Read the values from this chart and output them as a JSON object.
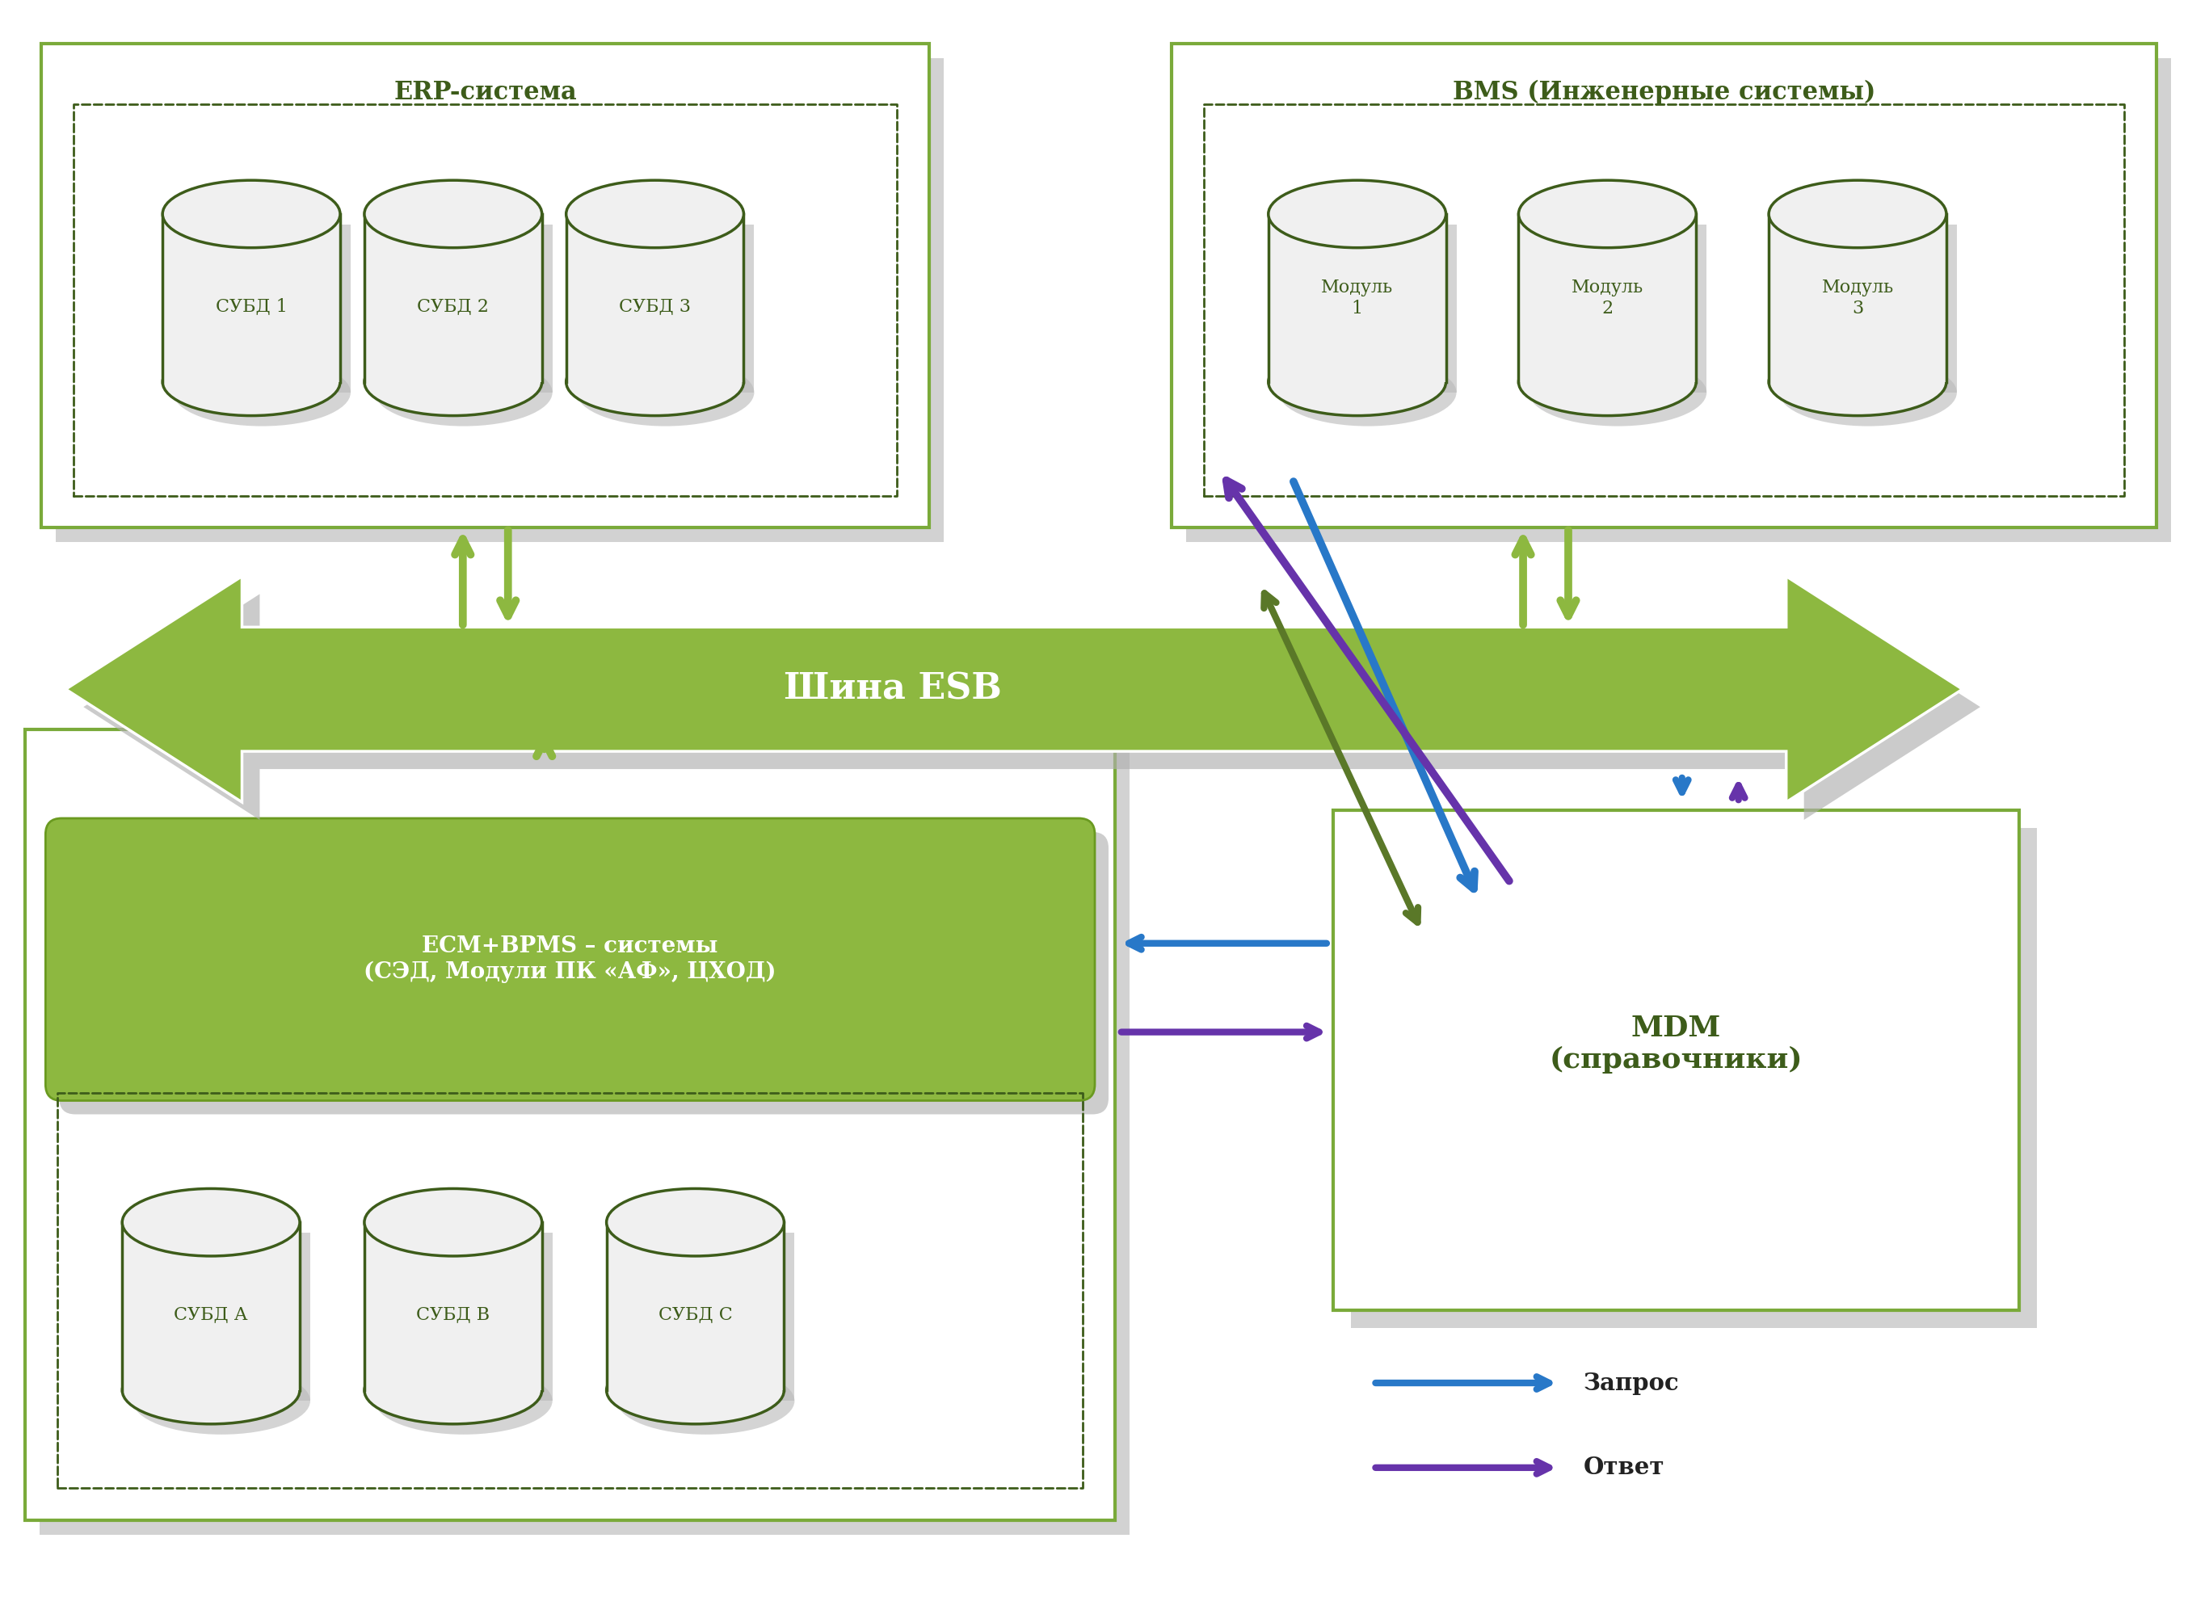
{
  "bg_color": "#ffffff",
  "green_dark": "#3d5c1a",
  "green_medium": "#7aaa3a",
  "green_fill": "#8db840",
  "blue_arrow": "#2878c8",
  "purple_arrow": "#6633aa",
  "olive_arrow": "#5a7828",
  "erp_title": "ERP-система",
  "bms_title": "BMS (Инженерные системы)",
  "esb_title": "Шина ESB",
  "ecm_title": "ECM+BPMS – системы\n(СЭД, Модули ПК «АФ», ЦХОД)",
  "mdm_title": "MDM\n(справочники)",
  "legend_request": "Запрос",
  "legend_response": "Ответ",
  "db_labels_erp": [
    "СУБД 1",
    "СУБД 2",
    "СУБД 3"
  ],
  "db_labels_bms": [
    "Модуль\n1",
    "Модуль\n2",
    "Модуль\n3"
  ],
  "db_labels_ecm": [
    "СУБД А",
    "СУБД В",
    "СУБД С"
  ]
}
